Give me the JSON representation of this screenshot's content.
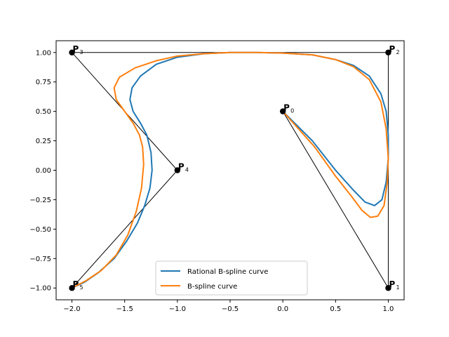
{
  "chart_data": {
    "type": "line",
    "title": "",
    "xlabel": "",
    "ylabel": "",
    "xlim": [
      -2.15,
      1.15
    ],
    "ylim": [
      -1.1,
      1.1
    ],
    "xticks": [
      -2.0,
      -1.5,
      -1.0,
      -0.5,
      0.0,
      0.5,
      1.0
    ],
    "xtick_labels": [
      "−2.0",
      "−1.5",
      "−1.0",
      "−0.5",
      "0.0",
      "0.5",
      "1.0"
    ],
    "yticks": [
      1.0,
      0.75,
      0.5,
      0.25,
      0.0,
      -0.25,
      -0.5,
      -0.75,
      -1.0
    ],
    "ytick_labels": [
      "1.00",
      "0.75",
      "0.50",
      "0.25",
      "0.00",
      "−0.25",
      "−0.50",
      "−0.75",
      "−1.00"
    ],
    "grid": false,
    "legend_position": "lower-center",
    "control_points": [
      {
        "name": "P",
        "sub": "0",
        "x": 0.0,
        "y": 0.5
      },
      {
        "name": "P",
        "sub": "1",
        "x": 1.0,
        "y": -1.0
      },
      {
        "name": "P",
        "sub": "2",
        "x": 1.0,
        "y": 1.0
      },
      {
        "name": "P",
        "sub": "3",
        "x": -2.0,
        "y": 1.0
      },
      {
        "name": "P",
        "sub": "4",
        "x": -1.0,
        "y": 0.0
      },
      {
        "name": "P",
        "sub": "5",
        "x": -2.0,
        "y": -1.0
      }
    ],
    "series": [
      {
        "name": "Rational B-spline curve",
        "color": "#1f77b4",
        "x": [
          0.0,
          0.28,
          0.5,
          0.67,
          0.78,
          0.87,
          0.94,
          0.98,
          1.0,
          1.0,
          0.98,
          0.93,
          0.82,
          0.67,
          0.5,
          0.28,
          0.0,
          -0.25,
          -0.5,
          -0.75,
          -1.0,
          -1.2,
          -1.35,
          -1.43,
          -1.45,
          -1.42,
          -1.35,
          -1.29,
          -1.25,
          -1.24,
          -1.26,
          -1.31,
          -1.38,
          -1.48,
          -1.6,
          -1.75,
          -1.88,
          -2.0
        ],
        "y": [
          0.5,
          0.25,
          0.0,
          -0.17,
          -0.27,
          -0.3,
          -0.25,
          -0.1,
          0.1,
          0.3,
          0.5,
          0.65,
          0.8,
          0.89,
          0.94,
          0.98,
          0.995,
          1.0,
          1.0,
          0.99,
          0.96,
          0.9,
          0.8,
          0.7,
          0.6,
          0.5,
          0.4,
          0.3,
          0.15,
          0.0,
          -0.15,
          -0.3,
          -0.45,
          -0.6,
          -0.75,
          -0.87,
          -0.95,
          -1.0
        ]
      },
      {
        "name": "B-spline curve",
        "color": "#ff7f0e",
        "x": [
          0.0,
          0.3,
          0.5,
          0.65,
          0.75,
          0.83,
          0.9,
          0.96,
          0.99,
          1.0,
          0.98,
          0.93,
          0.82,
          0.67,
          0.5,
          0.28,
          0.0,
          -0.25,
          -0.5,
          -0.75,
          -1.0,
          -1.2,
          -1.4,
          -1.55,
          -1.6,
          -1.58,
          -1.5,
          -1.42,
          -1.36,
          -1.33,
          -1.32,
          -1.34,
          -1.39,
          -1.47,
          -1.58,
          -1.72,
          -1.87,
          -2.0
        ],
        "y": [
          0.5,
          0.2,
          -0.05,
          -0.22,
          -0.34,
          -0.4,
          -0.39,
          -0.3,
          -0.1,
          0.1,
          0.35,
          0.58,
          0.77,
          0.88,
          0.94,
          0.98,
          0.995,
          1.0,
          1.0,
          0.99,
          0.97,
          0.93,
          0.87,
          0.79,
          0.7,
          0.6,
          0.5,
          0.4,
          0.3,
          0.2,
          0.05,
          -0.15,
          -0.35,
          -0.55,
          -0.72,
          -0.85,
          -0.94,
          -1.0
        ]
      }
    ]
  }
}
